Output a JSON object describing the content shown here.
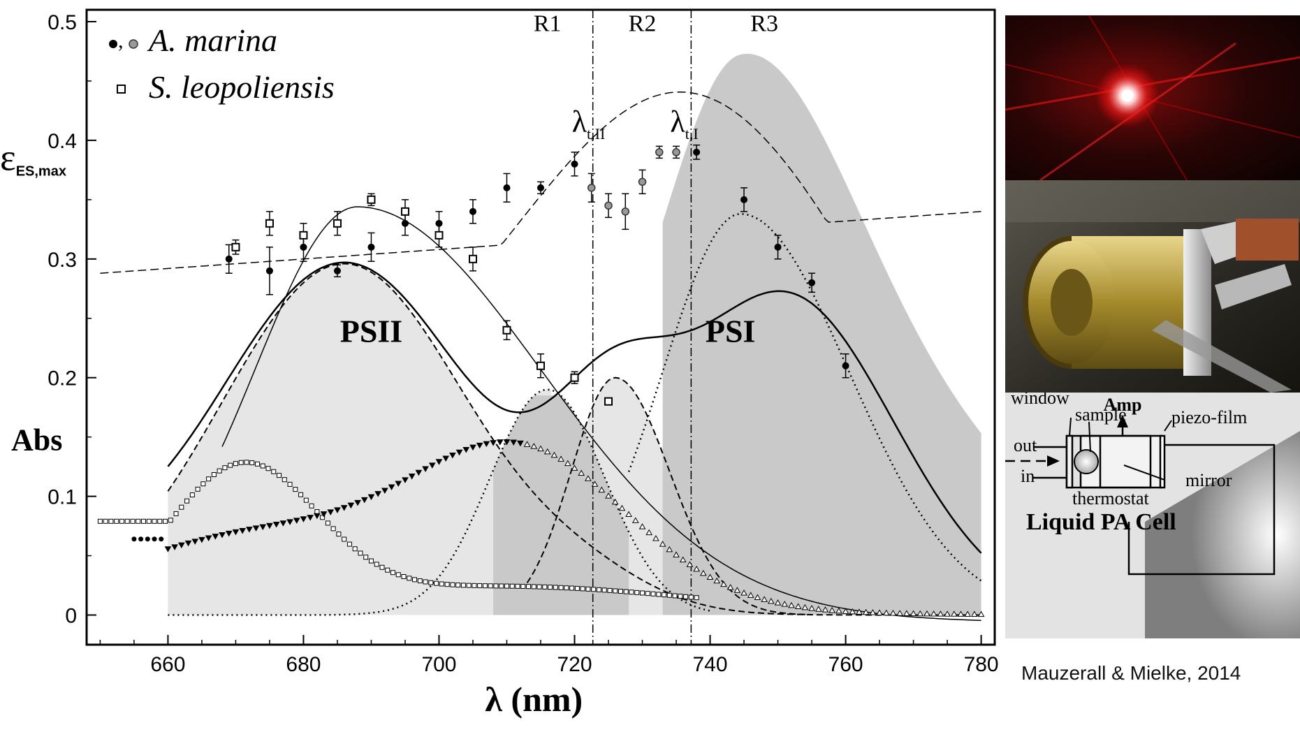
{
  "chart_data": {
    "type": "scatter",
    "xlabel": "λ (nm)",
    "ylabel_top": {
      "symbol": "ε",
      "subscript": "ES,max"
    },
    "ylabel_bottom": "Abs",
    "xlim": [
      648,
      782
    ],
    "ylim": [
      -0.025,
      0.51
    ],
    "x_ticks": [
      660,
      680,
      700,
      720,
      740,
      760,
      780
    ],
    "y_ticks": [
      0,
      0.1,
      0.2,
      0.3,
      0.4,
      0.5
    ],
    "y_tick_labels": [
      "0",
      "0.1",
      "0.2",
      "0.3",
      "0.4",
      "0.5"
    ],
    "legend": {
      "placement": "top-left",
      "entries": [
        {
          "marker": "•,",
          "label": "A. marina"
        },
        {
          "marker": "square",
          "label": "S. leopoliensis"
        }
      ]
    },
    "regions": [
      {
        "label": "R1",
        "x": 716
      },
      {
        "label": "R2",
        "x": 730
      },
      {
        "label": "R3",
        "x": 748
      }
    ],
    "vlines": [
      {
        "x": 722.7,
        "label": "λ",
        "subscript": "t,II"
      },
      {
        "x": 737.2,
        "label": "λ",
        "subscript": "t,I"
      }
    ],
    "band_labels": [
      {
        "label": "PSII",
        "x": 690,
        "y": 0.23
      },
      {
        "label": "PSI",
        "x": 743,
        "y": 0.23
      }
    ],
    "series": [
      {
        "name": "A. marina",
        "marker": "filled-circle",
        "points": [
          {
            "x": 669,
            "y": 0.3,
            "err": 0.012
          },
          {
            "x": 675,
            "y": 0.29,
            "err": 0.02
          },
          {
            "x": 680,
            "y": 0.31,
            "err": 0.012
          },
          {
            "x": 685,
            "y": 0.29,
            "err": 0.005
          },
          {
            "x": 690,
            "y": 0.31,
            "err": 0.012
          },
          {
            "x": 695,
            "y": 0.33,
            "err": 0.01
          },
          {
            "x": 700,
            "y": 0.33,
            "err": 0.01
          },
          {
            "x": 705,
            "y": 0.34,
            "err": 0.01
          },
          {
            "x": 710,
            "y": 0.36,
            "err": 0.012
          },
          {
            "x": 715,
            "y": 0.36,
            "err": 0.005
          },
          {
            "x": 720,
            "y": 0.38,
            "err": 0.01
          },
          {
            "x": 738,
            "y": 0.39,
            "err": 0.006
          },
          {
            "x": 745,
            "y": 0.35,
            "err": 0.01
          },
          {
            "x": 750,
            "y": 0.31,
            "err": 0.01
          },
          {
            "x": 755,
            "y": 0.28,
            "err": 0.008
          },
          {
            "x": 760,
            "y": 0.21,
            "err": 0.01
          }
        ]
      },
      {
        "name": "A. marina (grey)",
        "marker": "grey-circle",
        "points": [
          {
            "x": 722.5,
            "y": 0.36,
            "err": 0.012
          },
          {
            "x": 725,
            "y": 0.345,
            "err": 0.01
          },
          {
            "x": 727.5,
            "y": 0.34,
            "err": 0.015
          },
          {
            "x": 730,
            "y": 0.365,
            "err": 0.01
          },
          {
            "x": 732.5,
            "y": 0.39,
            "err": 0.005
          },
          {
            "x": 735,
            "y": 0.39,
            "err": 0.005
          }
        ]
      },
      {
        "name": "S. leopoliensis",
        "marker": "open-square",
        "points": [
          {
            "x": 670,
            "y": 0.31,
            "err": 0.006
          },
          {
            "x": 675,
            "y": 0.33,
            "err": 0.01
          },
          {
            "x": 680,
            "y": 0.32,
            "err": 0.01
          },
          {
            "x": 685,
            "y": 0.33,
            "err": 0.01
          },
          {
            "x": 690,
            "y": 0.35,
            "err": 0.005
          },
          {
            "x": 695,
            "y": 0.34,
            "err": 0.01
          },
          {
            "x": 700,
            "y": 0.32,
            "err": 0.01
          },
          {
            "x": 705,
            "y": 0.3,
            "err": 0.01
          },
          {
            "x": 710,
            "y": 0.24,
            "err": 0.008
          },
          {
            "x": 715,
            "y": 0.21,
            "err": 0.01
          },
          {
            "x": 720,
            "y": 0.2,
            "err": 0.005
          },
          {
            "x": 725,
            "y": 0.18,
            "err": 0.0
          }
        ]
      }
    ]
  },
  "photos": {
    "laser": "laser-beam-photo",
    "cell": "brass-pa-cell-photo",
    "diagram": {
      "amp": "Amp",
      "window": "window",
      "sample": "sample",
      "piezo": "piezo-film",
      "out": "out",
      "in": "in",
      "mirror": "mirror",
      "thermostat": "thermostat",
      "title": "Liquid PA Cell"
    }
  },
  "credit": "Mauzerall & Mielke, 2014"
}
